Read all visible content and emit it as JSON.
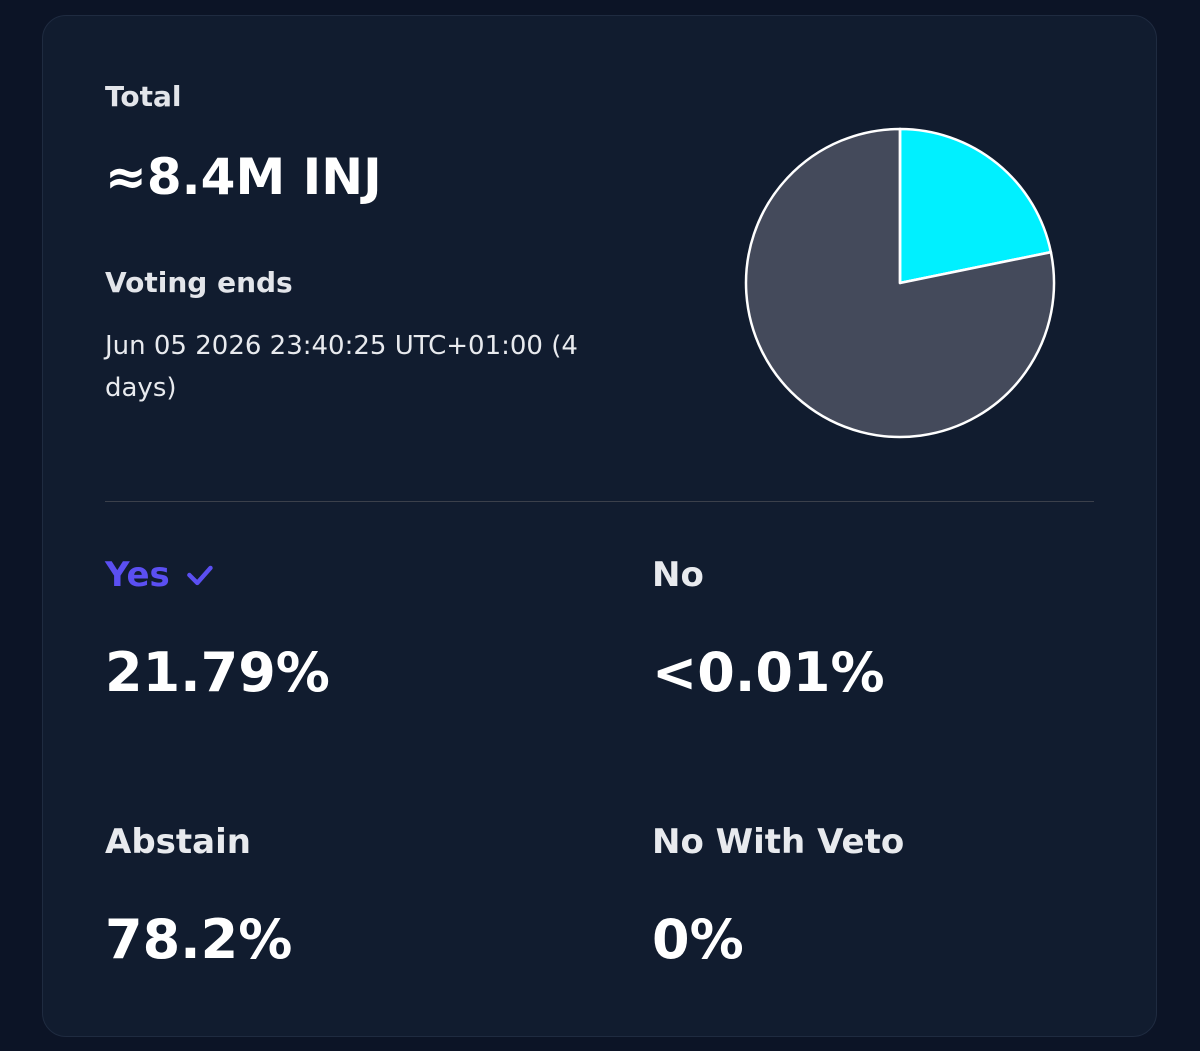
{
  "summary": {
    "total_label": "Total",
    "total": "≈8.4M INJ",
    "voting_ends_label": "Voting ends",
    "voting_ends": "Jun 05 2026 23:40:25 UTC+01:00 (4 days)"
  },
  "chart_data": {
    "type": "pie",
    "categories": [
      "Yes",
      "No",
      "Abstain",
      "No With Veto"
    ],
    "values": [
      21.79,
      0.01,
      78.2,
      0
    ],
    "value_labels": [
      "21.79%",
      "<0.01%",
      "78.2%",
      "0%"
    ],
    "colors": [
      "#00f0ff",
      "#e5484d",
      "#444a5b",
      "#f5a524"
    ]
  }
}
